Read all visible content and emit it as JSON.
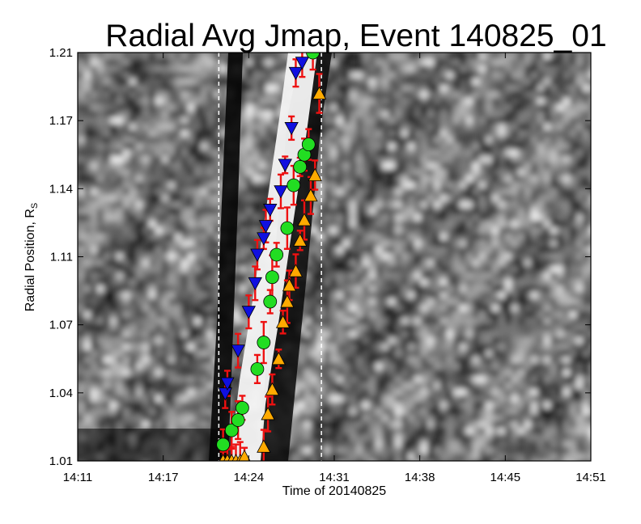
{
  "chart_data": {
    "type": "scatter",
    "title": "Radial Avg Jmap, Event 140825_01",
    "xlabel": "Time of 20140825",
    "ylabel": "Radial Position, R",
    "ylabel_subscript": "S",
    "x_ticks": [
      "14:11",
      "14:17",
      "14:24",
      "14:31",
      "14:38",
      "14:45",
      "14:51"
    ],
    "y_ticks": [
      "1.01",
      "1.04",
      "1.07",
      "1.11",
      "1.14",
      "1.17",
      "1.21"
    ],
    "xlim": [
      "14:11",
      "14:51"
    ],
    "ylim": [
      1.01,
      1.21
    ],
    "background": "grayscale intensity map (Jmap)",
    "vertical_markers": [
      "14:22",
      "14:30"
    ],
    "series": [
      {
        "marker": "triangle-down",
        "color": "#1010e0",
        "points": [
          {
            "x": "14:22:30",
            "y": 1.043
          },
          {
            "x": "14:22:40",
            "y": 1.048
          },
          {
            "x": "14:23:30",
            "y": 1.064
          },
          {
            "x": "14:24:20",
            "y": 1.083
          },
          {
            "x": "14:24:50",
            "y": 1.097
          },
          {
            "x": "14:25:00",
            "y": 1.111
          },
          {
            "x": "14:25:30",
            "y": 1.119
          },
          {
            "x": "14:25:40",
            "y": 1.125
          },
          {
            "x": "14:26:00",
            "y": 1.133
          },
          {
            "x": "14:26:50",
            "y": 1.142
          },
          {
            "x": "14:27:10",
            "y": 1.155
          },
          {
            "x": "14:27:40",
            "y": 1.173
          },
          {
            "x": "14:28:00",
            "y": 1.2
          },
          {
            "x": "14:28:30",
            "y": 1.205
          }
        ]
      },
      {
        "marker": "circle",
        "color": "#22dd22",
        "points": [
          {
            "x": "14:22:20",
            "y": 1.018
          },
          {
            "x": "14:23:00",
            "y": 1.025
          },
          {
            "x": "14:23:30",
            "y": 1.03
          },
          {
            "x": "14:23:50",
            "y": 1.036
          },
          {
            "x": "14:25:00",
            "y": 1.055
          },
          {
            "x": "14:25:30",
            "y": 1.068
          },
          {
            "x": "14:26:00",
            "y": 1.088
          },
          {
            "x": "14:26:10",
            "y": 1.1
          },
          {
            "x": "14:26:30",
            "y": 1.111
          },
          {
            "x": "14:27:20",
            "y": 1.124
          },
          {
            "x": "14:27:50",
            "y": 1.145
          },
          {
            "x": "14:28:20",
            "y": 1.154
          },
          {
            "x": "14:28:40",
            "y": 1.16
          },
          {
            "x": "14:29:00",
            "y": 1.165
          },
          {
            "x": "14:29:20",
            "y": 1.21
          }
        ]
      },
      {
        "marker": "triangle-up",
        "color": "#ffaa00",
        "points": [
          {
            "x": "14:22:20",
            "y": 1.01
          },
          {
            "x": "14:22:40",
            "y": 1.01
          },
          {
            "x": "14:23:00",
            "y": 1.01
          },
          {
            "x": "14:23:20",
            "y": 1.01
          },
          {
            "x": "14:23:40",
            "y": 1.01
          },
          {
            "x": "14:24:00",
            "y": 1.012
          },
          {
            "x": "14:25:30",
            "y": 1.017
          },
          {
            "x": "14:25:50",
            "y": 1.033
          },
          {
            "x": "14:26:10",
            "y": 1.045
          },
          {
            "x": "14:26:40",
            "y": 1.06
          },
          {
            "x": "14:27:00",
            "y": 1.078
          },
          {
            "x": "14:27:20",
            "y": 1.088
          },
          {
            "x": "14:27:30",
            "y": 1.096
          },
          {
            "x": "14:28:00",
            "y": 1.103
          },
          {
            "x": "14:28:20",
            "y": 1.118
          },
          {
            "x": "14:28:40",
            "y": 1.128
          },
          {
            "x": "14:29:10",
            "y": 1.14
          },
          {
            "x": "14:29:30",
            "y": 1.15
          },
          {
            "x": "14:29:50",
            "y": 1.19
          }
        ]
      }
    ],
    "error_bar_color": "#ee1111"
  }
}
